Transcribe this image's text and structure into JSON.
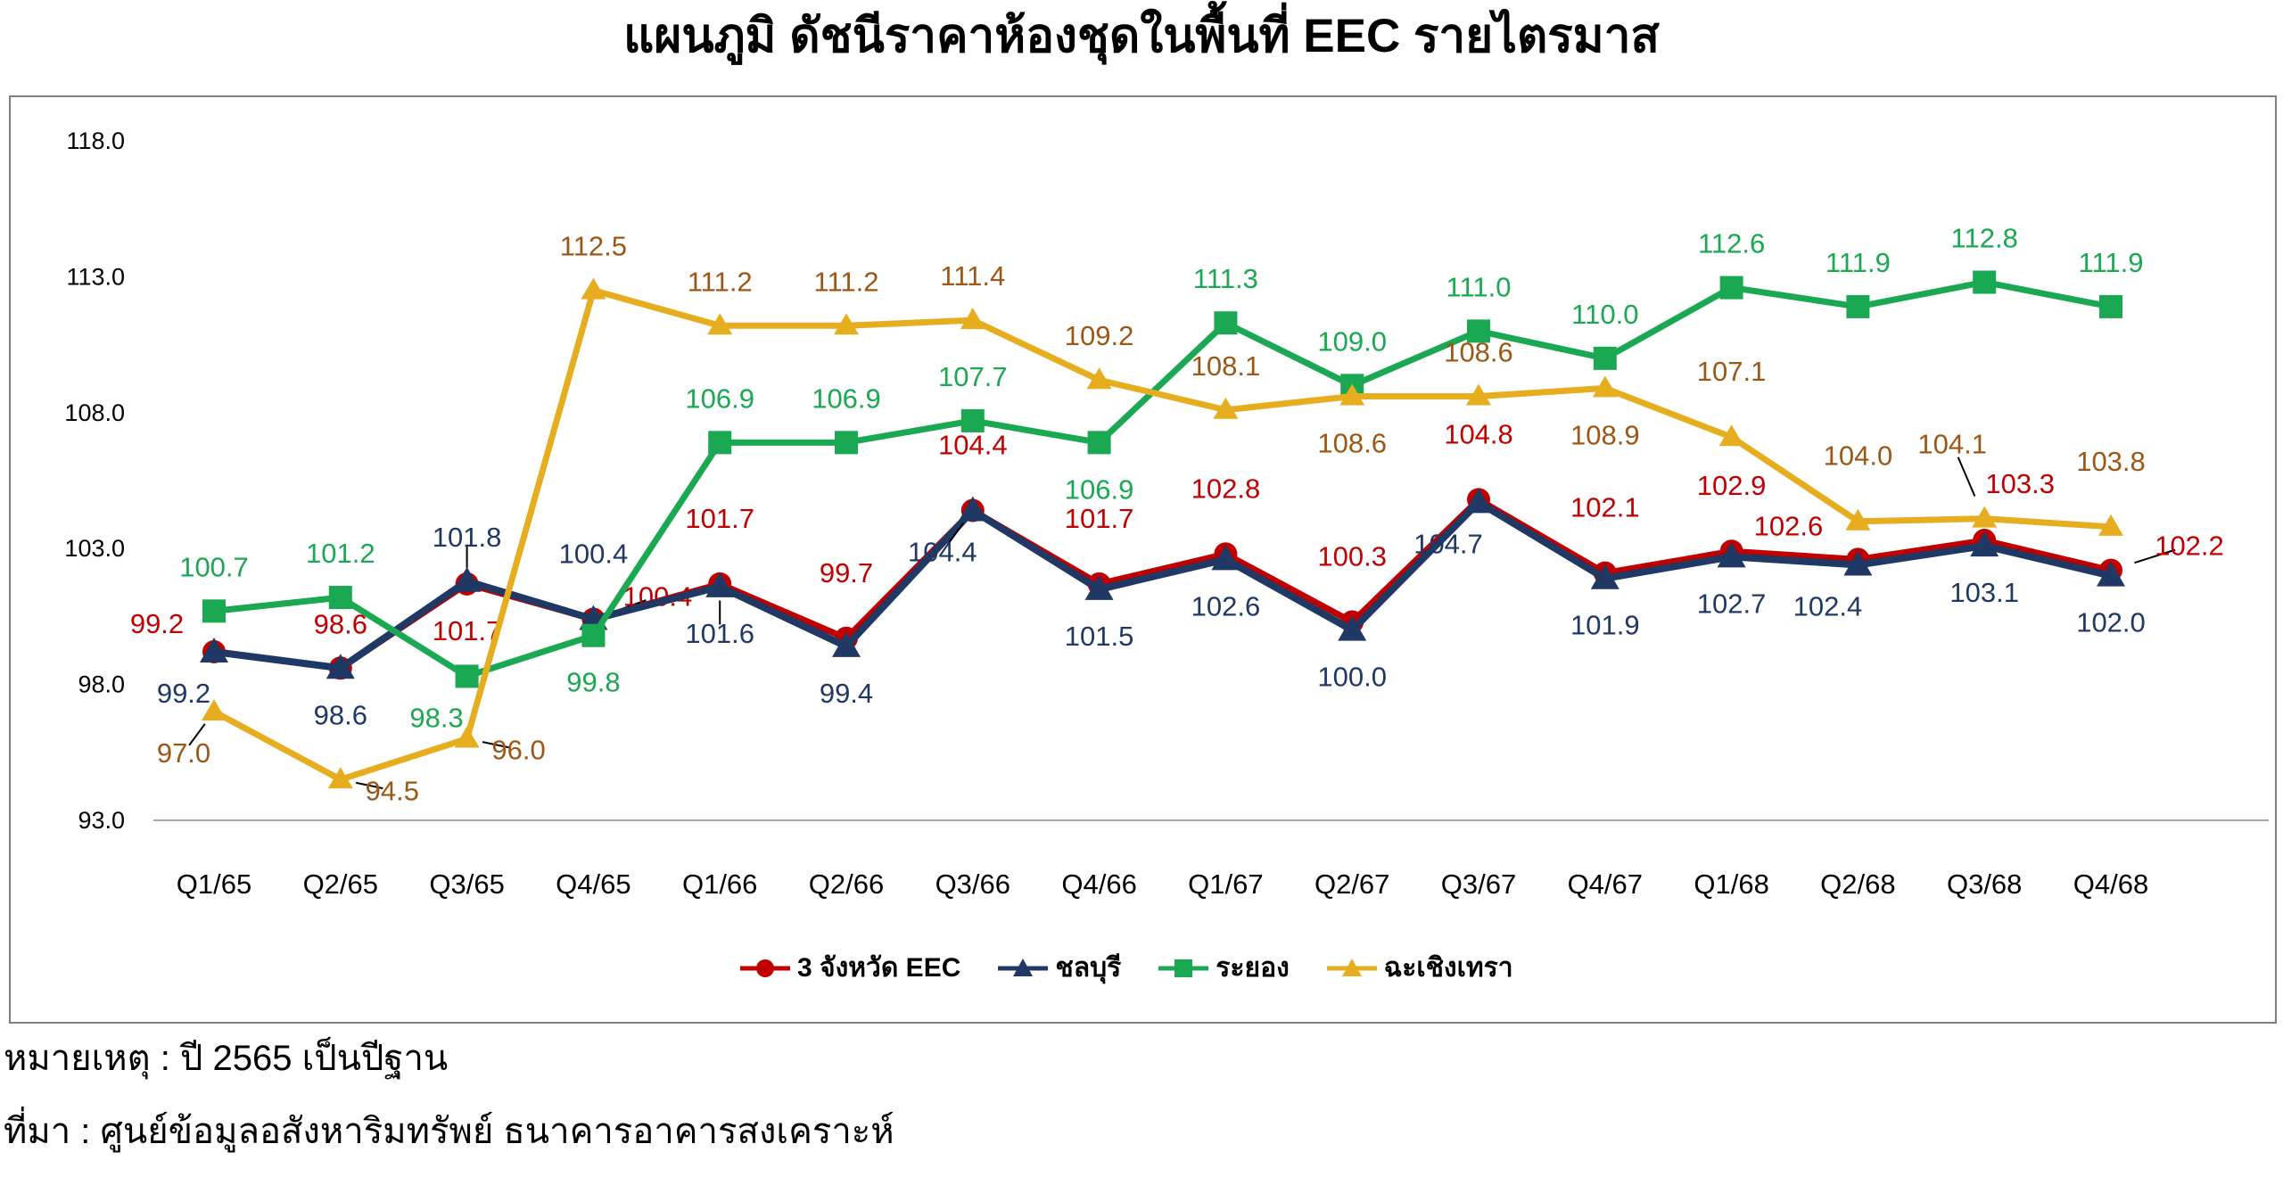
{
  "title": "แผนภูมิ ดัชนีราคาห้องชุดในพื้นที่ EEC รายไตรมาส",
  "footer": {
    "note": "หมายเหตุ : ปี 2565 เป็นปีฐาน",
    "source": "ที่มา : ศูนย์ข้อมูลอสังหาริมทรัพย์ ธนาคารอาคารสงเคราะห์"
  },
  "chart_data": {
    "type": "line",
    "title": "แผนภูมิ ดัชนีราคาห้องชุดในพื้นที่ EEC รายไตรมาส",
    "xlabel": "",
    "ylabel": "",
    "ylim": [
      93.0,
      118.0
    ],
    "grid": false,
    "legend_position": "bottom",
    "axis_color": "#a6a6a6",
    "y_ticks": [
      "118.0",
      "113.0",
      "108.0",
      "103.0",
      "98.0",
      "93.0"
    ],
    "categories": [
      "Q1/65",
      "Q2/65",
      "Q3/65",
      "Q4/65",
      "Q1/66",
      "Q2/66",
      "Q3/66",
      "Q4/66",
      "Q1/67",
      "Q2/67",
      "Q3/67",
      "Q4/67",
      "Q1/68",
      "Q2/68",
      "Q3/68",
      "Q4/68"
    ],
    "series": [
      {
        "name": "3 จังหวัด EEC",
        "color": "#C00000",
        "label_color": "#C00000",
        "marker": "circle",
        "line_width": 7,
        "values": [
          99.2,
          98.6,
          101.7,
          100.4,
          101.7,
          99.7,
          104.4,
          101.7,
          102.8,
          100.3,
          104.8,
          102.1,
          102.9,
          102.6,
          103.3,
          102.2
        ],
        "placements": [
          "l",
          "a",
          "b",
          "r",
          "aa",
          "aa",
          "aa",
          "aa",
          "aa",
          "aa",
          "aa",
          "aa",
          "aa",
          "al",
          "ar",
          "rr"
        ],
        "leaders": [
          3,
          15
        ]
      },
      {
        "name": "ชลบุรี",
        "color": "#1F3864",
        "label_color": "#1F3864",
        "marker": "triangle-big",
        "line_width": 8,
        "values": [
          99.2,
          98.6,
          101.8,
          100.4,
          101.6,
          99.4,
          104.4,
          101.5,
          102.6,
          100.0,
          104.7,
          101.9,
          102.7,
          102.4,
          103.1,
          102.0
        ],
        "placements": [
          "bl",
          "b",
          "a",
          "aa",
          "b",
          "b",
          "bl",
          "b",
          "b",
          "b",
          "bl",
          "b",
          "b",
          "bl",
          "b",
          "b"
        ],
        "leaders": [
          2,
          4,
          6
        ]
      },
      {
        "name": "ระยอง",
        "color": "#1AA852",
        "label_color": "#1AA852",
        "marker": "square",
        "line_width": 7,
        "values": [
          100.7,
          101.2,
          98.3,
          99.8,
          106.9,
          106.9,
          107.7,
          106.9,
          111.3,
          109.0,
          111.0,
          110.0,
          112.6,
          111.9,
          112.8,
          111.9
        ],
        "placements": [
          "a",
          "a",
          "bl",
          "b",
          "a",
          "a",
          "a",
          "b",
          "a",
          "a",
          "a",
          "a",
          "a",
          "a",
          "a",
          "a"
        ],
        "leaders": []
      },
      {
        "name": "ฉะเชิงเทรา",
        "color": "#E6AE1F",
        "label_color": "#9C5716",
        "marker": "triangle",
        "line_width": 7,
        "values": [
          97.0,
          94.5,
          96.0,
          112.5,
          111.2,
          111.2,
          111.4,
          109.2,
          108.1,
          108.6,
          108.6,
          108.9,
          107.1,
          104.0,
          104.1,
          103.8
        ],
        "placements": [
          "bl",
          "rb",
          "rb",
          "a",
          "a",
          "a",
          "a",
          "a",
          "a",
          "b",
          "a",
          "b",
          "aa",
          "aa",
          "c",
          "aa"
        ],
        "leaders": [
          0,
          1,
          2,
          14
        ],
        "label_offset_overrides": {
          "14": [
            -36,
            -84
          ]
        }
      }
    ]
  }
}
